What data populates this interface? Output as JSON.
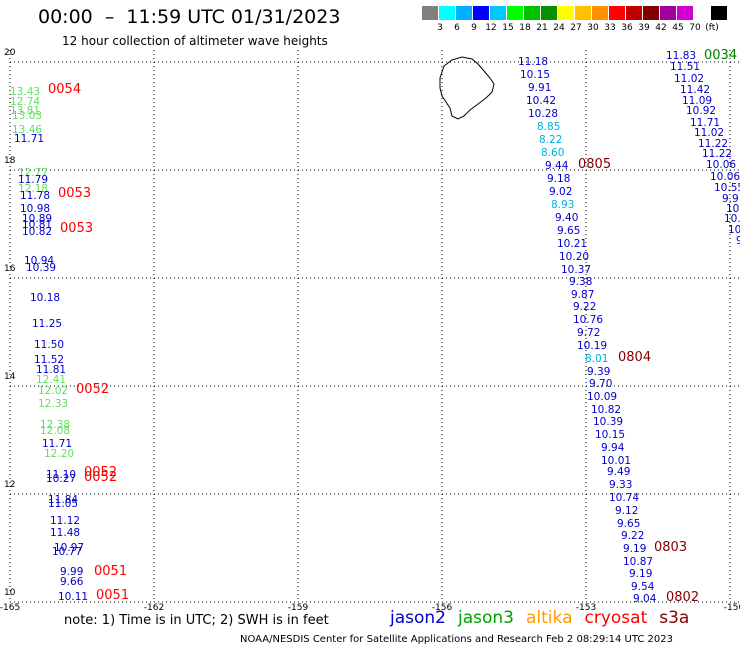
{
  "header": {
    "title": "00:00  –  11:59 UTC 01/31/2023",
    "subtitle": "12 hour collection of altimeter wave heights"
  },
  "legend": {
    "colors": [
      "#808080",
      "#00ffff",
      "#00b0ff",
      "#0000ff",
      "#00c8ff",
      "#00ff00",
      "#00c000",
      "#009000",
      "#ffff00",
      "#ffc000",
      "#ff9000",
      "#ff0000",
      "#c00000",
      "#800000",
      "#a000a0",
      "#d000d0",
      "#ffffff",
      "#000000"
    ],
    "labels": [
      "3",
      "6",
      "9",
      "12",
      "15",
      "18",
      "21",
      "24",
      "27",
      "30",
      "33",
      "36",
      "39",
      "42",
      "45",
      "70",
      "(ft)"
    ]
  },
  "axes": {
    "lat_labels": [
      "20",
      "18",
      "16",
      "14",
      "12",
      "10"
    ],
    "lon_labels": [
      "-165",
      "-162",
      "-159",
      "-156",
      "-153",
      "-150"
    ]
  },
  "colors": {
    "blue": "#0000cc",
    "cyan": "#00b0e0",
    "green": "#60e060",
    "red": "#ff0000",
    "darkred": "#800000",
    "darkgreen": "#008000",
    "orange": "#ff9900",
    "magenta": "#dd0000"
  },
  "passes": [
    {
      "c": "red",
      "t": "0054"
    },
    {
      "c": "red",
      "t": "0053"
    },
    {
      "c": "red",
      "t": "0053"
    },
    {
      "c": "red",
      "t": "0052"
    },
    {
      "c": "red",
      "t": "0052"
    },
    {
      "c": "red",
      "t": "0052"
    },
    {
      "c": "red",
      "t": "0051"
    },
    {
      "c": "red",
      "t": "0051"
    },
    {
      "c": "darkred",
      "t": "0805"
    },
    {
      "c": "darkred",
      "t": "0804"
    },
    {
      "c": "darkred",
      "t": "0803"
    },
    {
      "c": "darkred",
      "t": "0802"
    },
    {
      "c": "darkgreen",
      "t": "0034"
    }
  ],
  "values": [
    {
      "c": "green",
      "t": "13.43"
    },
    {
      "c": "green",
      "t": "12.74"
    },
    {
      "c": "green",
      "t": "13.81"
    },
    {
      "c": "green",
      "t": "13.03"
    },
    {
      "c": "green",
      "t": "13.46"
    },
    {
      "c": "blue",
      "t": "11.71"
    },
    {
      "c": "green",
      "t": "12.77"
    },
    {
      "c": "blue",
      "t": "11.79"
    },
    {
      "c": "green",
      "t": "12.18"
    },
    {
      "c": "blue",
      "t": "11.78"
    },
    {
      "c": "blue",
      "t": "10.98"
    },
    {
      "c": "blue",
      "t": "10.89"
    },
    {
      "c": "blue",
      "t": "10.81"
    },
    {
      "c": "blue",
      "t": "10.82"
    },
    {
      "c": "blue",
      "t": "10.94"
    },
    {
      "c": "blue",
      "t": "10.39"
    },
    {
      "c": "blue",
      "t": "10.18"
    },
    {
      "c": "blue",
      "t": "11.25"
    },
    {
      "c": "blue",
      "t": "11.50"
    },
    {
      "c": "blue",
      "t": "11.52"
    },
    {
      "c": "blue",
      "t": "11.81"
    },
    {
      "c": "green",
      "t": "12.41"
    },
    {
      "c": "green",
      "t": "12.02"
    },
    {
      "c": "green",
      "t": "12.33"
    },
    {
      "c": "green",
      "t": "12.38"
    },
    {
      "c": "green",
      "t": "12.08"
    },
    {
      "c": "blue",
      "t": "11.71"
    },
    {
      "c": "green",
      "t": "12.20"
    },
    {
      "c": "blue",
      "t": "11.10"
    },
    {
      "c": "blue",
      "t": "10.27"
    },
    {
      "c": "blue",
      "t": "11.84"
    },
    {
      "c": "blue",
      "t": "11.05"
    },
    {
      "c": "blue",
      "t": "11.12"
    },
    {
      "c": "blue",
      "t": "11.48"
    },
    {
      "c": "blue",
      "t": "10.97"
    },
    {
      "c": "blue",
      "t": "10.77"
    },
    {
      "c": "blue",
      "t": "9.99"
    },
    {
      "c": "blue",
      "t": "9.66"
    },
    {
      "c": "blue",
      "t": "10.11"
    },
    {
      "c": "blue",
      "t": "11.18"
    },
    {
      "c": "blue",
      "t": "10.15"
    },
    {
      "c": "blue",
      "t": "9.91"
    },
    {
      "c": "blue",
      "t": "10.42"
    },
    {
      "c": "blue",
      "t": "10.28"
    },
    {
      "c": "cyan",
      "t": "8.85"
    },
    {
      "c": "cyan",
      "t": "8.22"
    },
    {
      "c": "cyan",
      "t": "8.60"
    },
    {
      "c": "blue",
      "t": "9.44"
    },
    {
      "c": "blue",
      "t": "9.18"
    },
    {
      "c": "blue",
      "t": "9.02"
    },
    {
      "c": "cyan",
      "t": "8.93"
    },
    {
      "c": "blue",
      "t": "9.40"
    },
    {
      "c": "blue",
      "t": "9.65"
    },
    {
      "c": "blue",
      "t": "10.21"
    },
    {
      "c": "blue",
      "t": "10.20"
    },
    {
      "c": "blue",
      "t": "10.37"
    },
    {
      "c": "blue",
      "t": "9.38"
    },
    {
      "c": "blue",
      "t": "9.87"
    },
    {
      "c": "blue",
      "t": "9.22"
    },
    {
      "c": "blue",
      "t": "10.76"
    },
    {
      "c": "blue",
      "t": "9.72"
    },
    {
      "c": "blue",
      "t": "10.19"
    },
    {
      "c": "cyan",
      "t": "8.01"
    },
    {
      "c": "blue",
      "t": "9.39"
    },
    {
      "c": "blue",
      "t": "9.70"
    },
    {
      "c": "blue",
      "t": "10.09"
    },
    {
      "c": "blue",
      "t": "10.82"
    },
    {
      "c": "blue",
      "t": "10.39"
    },
    {
      "c": "blue",
      "t": "10.15"
    },
    {
      "c": "blue",
      "t": "9.94"
    },
    {
      "c": "blue",
      "t": "10.01"
    },
    {
      "c": "blue",
      "t": "9.49"
    },
    {
      "c": "blue",
      "t": "9.33"
    },
    {
      "c": "blue",
      "t": "10.74"
    },
    {
      "c": "blue",
      "t": "9.12"
    },
    {
      "c": "blue",
      "t": "9.65"
    },
    {
      "c": "blue",
      "t": "9.22"
    },
    {
      "c": "blue",
      "t": "9.19"
    },
    {
      "c": "blue",
      "t": "10.87"
    },
    {
      "c": "blue",
      "t": "9.19"
    },
    {
      "c": "blue",
      "t": "9.54"
    },
    {
      "c": "blue",
      "t": "9.04"
    },
    {
      "c": "blue",
      "t": "11.83"
    },
    {
      "c": "blue",
      "t": "11.51"
    },
    {
      "c": "blue",
      "t": "11.02"
    },
    {
      "c": "blue",
      "t": "11.42"
    },
    {
      "c": "blue",
      "t": "11.09"
    },
    {
      "c": "blue",
      "t": "10.92"
    },
    {
      "c": "blue",
      "t": "11.71"
    },
    {
      "c": "blue",
      "t": "11.02"
    },
    {
      "c": "blue",
      "t": "11.22"
    },
    {
      "c": "blue",
      "t": "11.22"
    },
    {
      "c": "blue",
      "t": "10.06"
    },
    {
      "c": "blue",
      "t": "10.06"
    },
    {
      "c": "blue",
      "t": "10.55"
    },
    {
      "c": "blue",
      "t": "9.9"
    },
    {
      "c": "blue",
      "t": "10.6"
    },
    {
      "c": "blue",
      "t": "10."
    },
    {
      "c": "blue",
      "t": "10"
    },
    {
      "c": "blue",
      "t": "9"
    }
  ],
  "note": "note: 1) Time is in UTC; 2) SWH is in feet",
  "satellites": [
    {
      "name": "jason2",
      "color": "#0000cc"
    },
    {
      "name": "jason3",
      "color": "#00a000"
    },
    {
      "name": "altika",
      "color": "#ff9900"
    },
    {
      "name": "cryosat",
      "color": "#ff0000"
    },
    {
      "name": "s3a",
      "color": "#800000"
    }
  ],
  "footer": "NOAA/NESDIS Center for Satellite Applications and Research   Feb  2 08:29:14 UTC 2023"
}
